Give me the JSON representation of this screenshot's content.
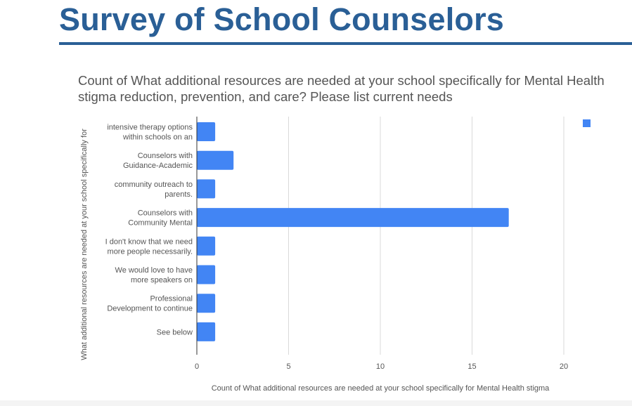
{
  "page": {
    "title": "Survey of School Counselors"
  },
  "colors": {
    "title": "#2a5f96",
    "bar": "#4285f4",
    "grid": "#d9d9d9",
    "text": "#555555"
  },
  "chart_data": {
    "type": "bar",
    "orientation": "horizontal",
    "title": "Count of What additional resources are needed at your school specifically for Mental Health stigma reduction, prevention, and care? Please list current needs",
    "xlabel": "Count of What additional resources are needed at your school specifically for Mental Health stigma",
    "ylabel": "What additional resources are needed at your school specifically for",
    "categories": [
      [
        "intensive therapy options",
        "within schools on an"
      ],
      [
        "Counselors with",
        "Guidance-Academic"
      ],
      [
        "community outreach to",
        "parents."
      ],
      [
        "Counselors with",
        "Community Mental"
      ],
      [
        "I don't know that we need",
        "more people necessarily."
      ],
      [
        "We would love to have",
        "more speakers on"
      ],
      [
        "Professional",
        "Development to continue"
      ],
      [
        "See below"
      ]
    ],
    "values": [
      1,
      2,
      1,
      17,
      1,
      1,
      1,
      1
    ],
    "xlim": [
      0,
      21
    ],
    "xticks": [
      0,
      5,
      10,
      15,
      20
    ],
    "xtick_labels": [
      "0",
      "5",
      "10",
      "15",
      "20"
    ],
    "grid": true,
    "legend": {
      "position": "top-right",
      "entries": [
        ""
      ]
    }
  }
}
